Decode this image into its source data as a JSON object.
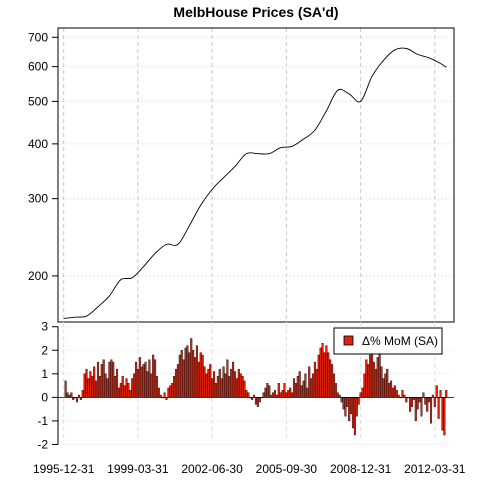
{
  "chart_data": [
    {
      "type": "line",
      "title": "MelbHouse Prices (SA'd)",
      "scale": "log",
      "ylim": [
        157,
        735
      ],
      "yticks": [
        200,
        300,
        400,
        500,
        600,
        700
      ],
      "ytick_labels": [
        "200",
        "300",
        "400",
        "500",
        "600",
        "700"
      ],
      "grid": true,
      "x": [
        "1995-12-31",
        "1996-06-30",
        "1996-12-31",
        "1997-06-30",
        "1997-12-31",
        "1998-06-30",
        "1998-12-31",
        "1999-06-30",
        "1999-12-31",
        "2000-06-30",
        "2000-12-31",
        "2001-06-30",
        "2001-12-31",
        "2002-06-30",
        "2002-12-31",
        "2003-06-30",
        "2003-12-31",
        "2004-06-30",
        "2004-12-31",
        "2005-06-30",
        "2005-12-31",
        "2006-06-30",
        "2006-12-31",
        "2007-06-30",
        "2007-12-31",
        "2008-06-30",
        "2008-12-31",
        "2009-06-30",
        "2009-12-31",
        "2010-06-30",
        "2010-12-31",
        "2011-06-30",
        "2011-12-31",
        "2012-06-30",
        "2012-09-30"
      ],
      "series": [
        {
          "values": [
            160,
            161,
            162,
            170,
            180,
            196,
            198,
            210,
            225,
            236,
            236,
            260,
            290,
            315,
            335,
            355,
            380,
            380,
            380,
            392,
            395,
            410,
            430,
            475,
            530,
            520,
            500,
            570,
            620,
            655,
            660,
            640,
            628,
            610,
            598
          ]
        }
      ]
    },
    {
      "type": "bar",
      "ylim": [
        -2.15,
        3.2
      ],
      "yticks": [
        -2,
        -1,
        0,
        1,
        2,
        3
      ],
      "ytick_labels": [
        "-2",
        "-1",
        "0",
        "1",
        "2",
        "3"
      ],
      "xtick_labels": [
        "1995-12-31",
        "1999-03-31",
        "2002-06-30",
        "2005-09-30",
        "2008-12-31",
        "2012-03-31"
      ],
      "legend": {
        "label": "Δ% MoM (SA)",
        "position": "top-right",
        "color": "#d9230f"
      },
      "series": [
        {
          "name": "Δ% MoM (SA)",
          "values": [
            0.7,
            0.2,
            0.1,
            0.2,
            -0.1,
            0.0,
            -0.2,
            0.1,
            -0.1,
            0.3,
            1.0,
            1.2,
            0.8,
            1.1,
            0.9,
            1.3,
            0.7,
            1.5,
            0.9,
            1.4,
            1.6,
            1.0,
            0.8,
            1.5,
            1.6,
            1.5,
            0.9,
            1.2,
            0.4,
            0.6,
            0.9,
            0.5,
            0.8,
            0.6,
            0.3,
            0.8,
            1.0,
            1.5,
            1.2,
            1.7,
            1.3,
            1.4,
            1.5,
            1.1,
            1.6,
            1.0,
            1.8,
            1.6,
            0.9,
            0.4,
            0.1,
            0.0,
            0.2,
            -0.1,
            0.4,
            0.5,
            0.6,
            0.9,
            1.2,
            1.4,
            1.8,
            2.0,
            1.6,
            2.1,
            2.2,
            1.9,
            2.5,
            2.0,
            1.7,
            2.2,
            1.5,
            1.9,
            1.8,
            1.3,
            1.0,
            1.2,
            1.4,
            0.8,
            1.1,
            0.6,
            0.9,
            1.2,
            0.8,
            1.3,
            1.0,
            1.6,
            0.9,
            1.2,
            1.5,
            1.1,
            0.8,
            1.2,
            1.0,
            0.9,
            0.7,
            0.3,
            0.2,
            0.0,
            -0.1,
            0.1,
            -0.3,
            -0.4,
            -0.2,
            0.0,
            0.2,
            0.4,
            0.6,
            0.5,
            0.1,
            0.2,
            0.3,
            0.1,
            0.6,
            0.2,
            0.3,
            0.6,
            0.2,
            0.3,
            0.4,
            0.2,
            0.8,
            0.6,
            0.9,
            1.1,
            0.5,
            0.7,
            1.0,
            0.4,
            1.3,
            0.8,
            1.0,
            1.5,
            1.2,
            1.8,
            2.1,
            2.3,
            1.9,
            2.2,
            1.9,
            1.6,
            1.4,
            1.0,
            0.6,
            0.2,
            0.1,
            -0.2,
            -0.5,
            -0.8,
            -0.4,
            -1.0,
            -0.7,
            -1.3,
            -1.6,
            -0.8,
            -0.3,
            0.2,
            0.4,
            1.0,
            1.6,
            1.4,
            1.8,
            2.0,
            1.5,
            1.2,
            1.7,
            2.0,
            1.3,
            0.8,
            1.0,
            1.2,
            0.6,
            0.7,
            0.4,
            0.5,
            0.3,
            0.1,
            0.0,
            0.3,
            0.1,
            -0.2,
            0.0,
            -0.6,
            -0.4,
            -0.1,
            -1.0,
            -0.5,
            -0.2,
            -0.8,
            0.2,
            -0.3,
            -0.6,
            -0.2,
            -1.1,
            0.1,
            -0.4,
            0.5,
            -0.9,
            0.3,
            -1.4,
            -1.6,
            0.3
          ]
        }
      ]
    }
  ]
}
